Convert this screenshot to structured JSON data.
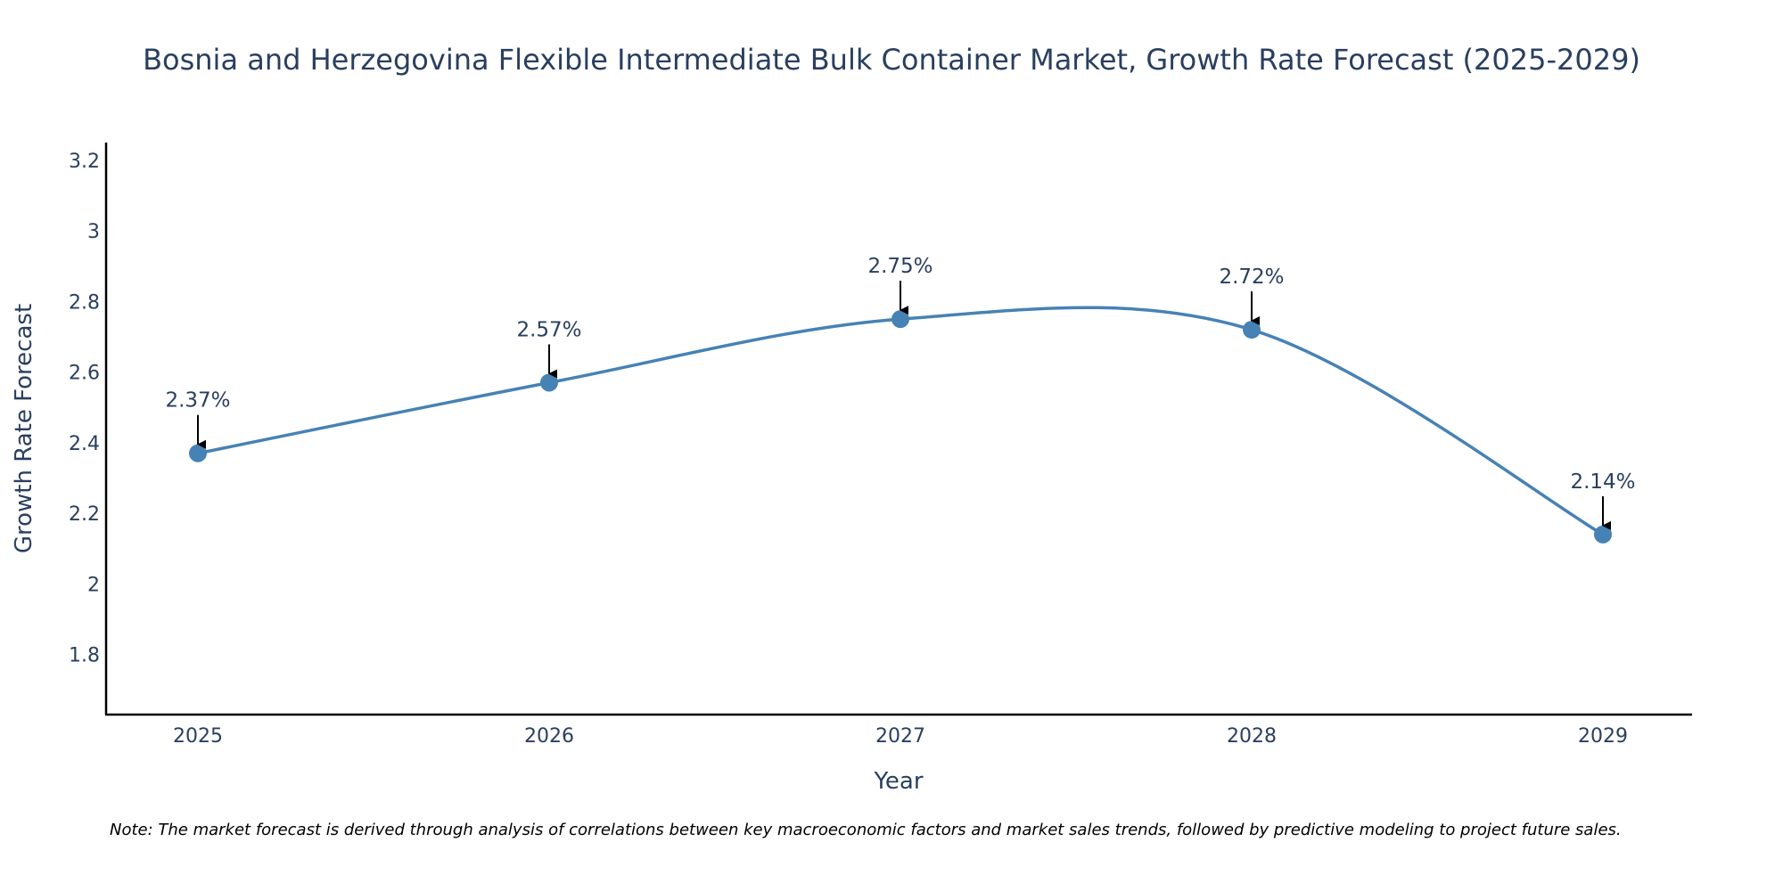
{
  "chart_data": {
    "type": "line",
    "title": "Bosnia and Herzegovina Flexible Intermediate Bulk Container Market, Growth Rate Forecast (2025-2029)",
    "xlabel": "Year",
    "ylabel": "Growth Rate Forecast",
    "categories": [
      "2025",
      "2026",
      "2027",
      "2028",
      "2029"
    ],
    "values": [
      2.37,
      2.57,
      2.75,
      2.72,
      2.14
    ],
    "annotations": [
      "2.37%",
      "2.57%",
      "2.75%",
      "2.72%",
      "2.14%"
    ],
    "ylim": [
      1.63,
      3.25
    ],
    "yticks": [
      1.8,
      2,
      2.2,
      2.4,
      2.6,
      2.8,
      3,
      3.2
    ],
    "ytick_labels": [
      "1.8",
      "2",
      "2.2",
      "2.4",
      "2.6",
      "2.8",
      "3",
      "3.2"
    ],
    "grid": false,
    "line_color": "#4682b4",
    "marker_color": "#4682b4",
    "arrow_color": "#000000",
    "note": "Note: The market forecast is derived through analysis of correlations between key macroeconomic factors and market sales trends, followed by predictive modeling to project future sales."
  }
}
